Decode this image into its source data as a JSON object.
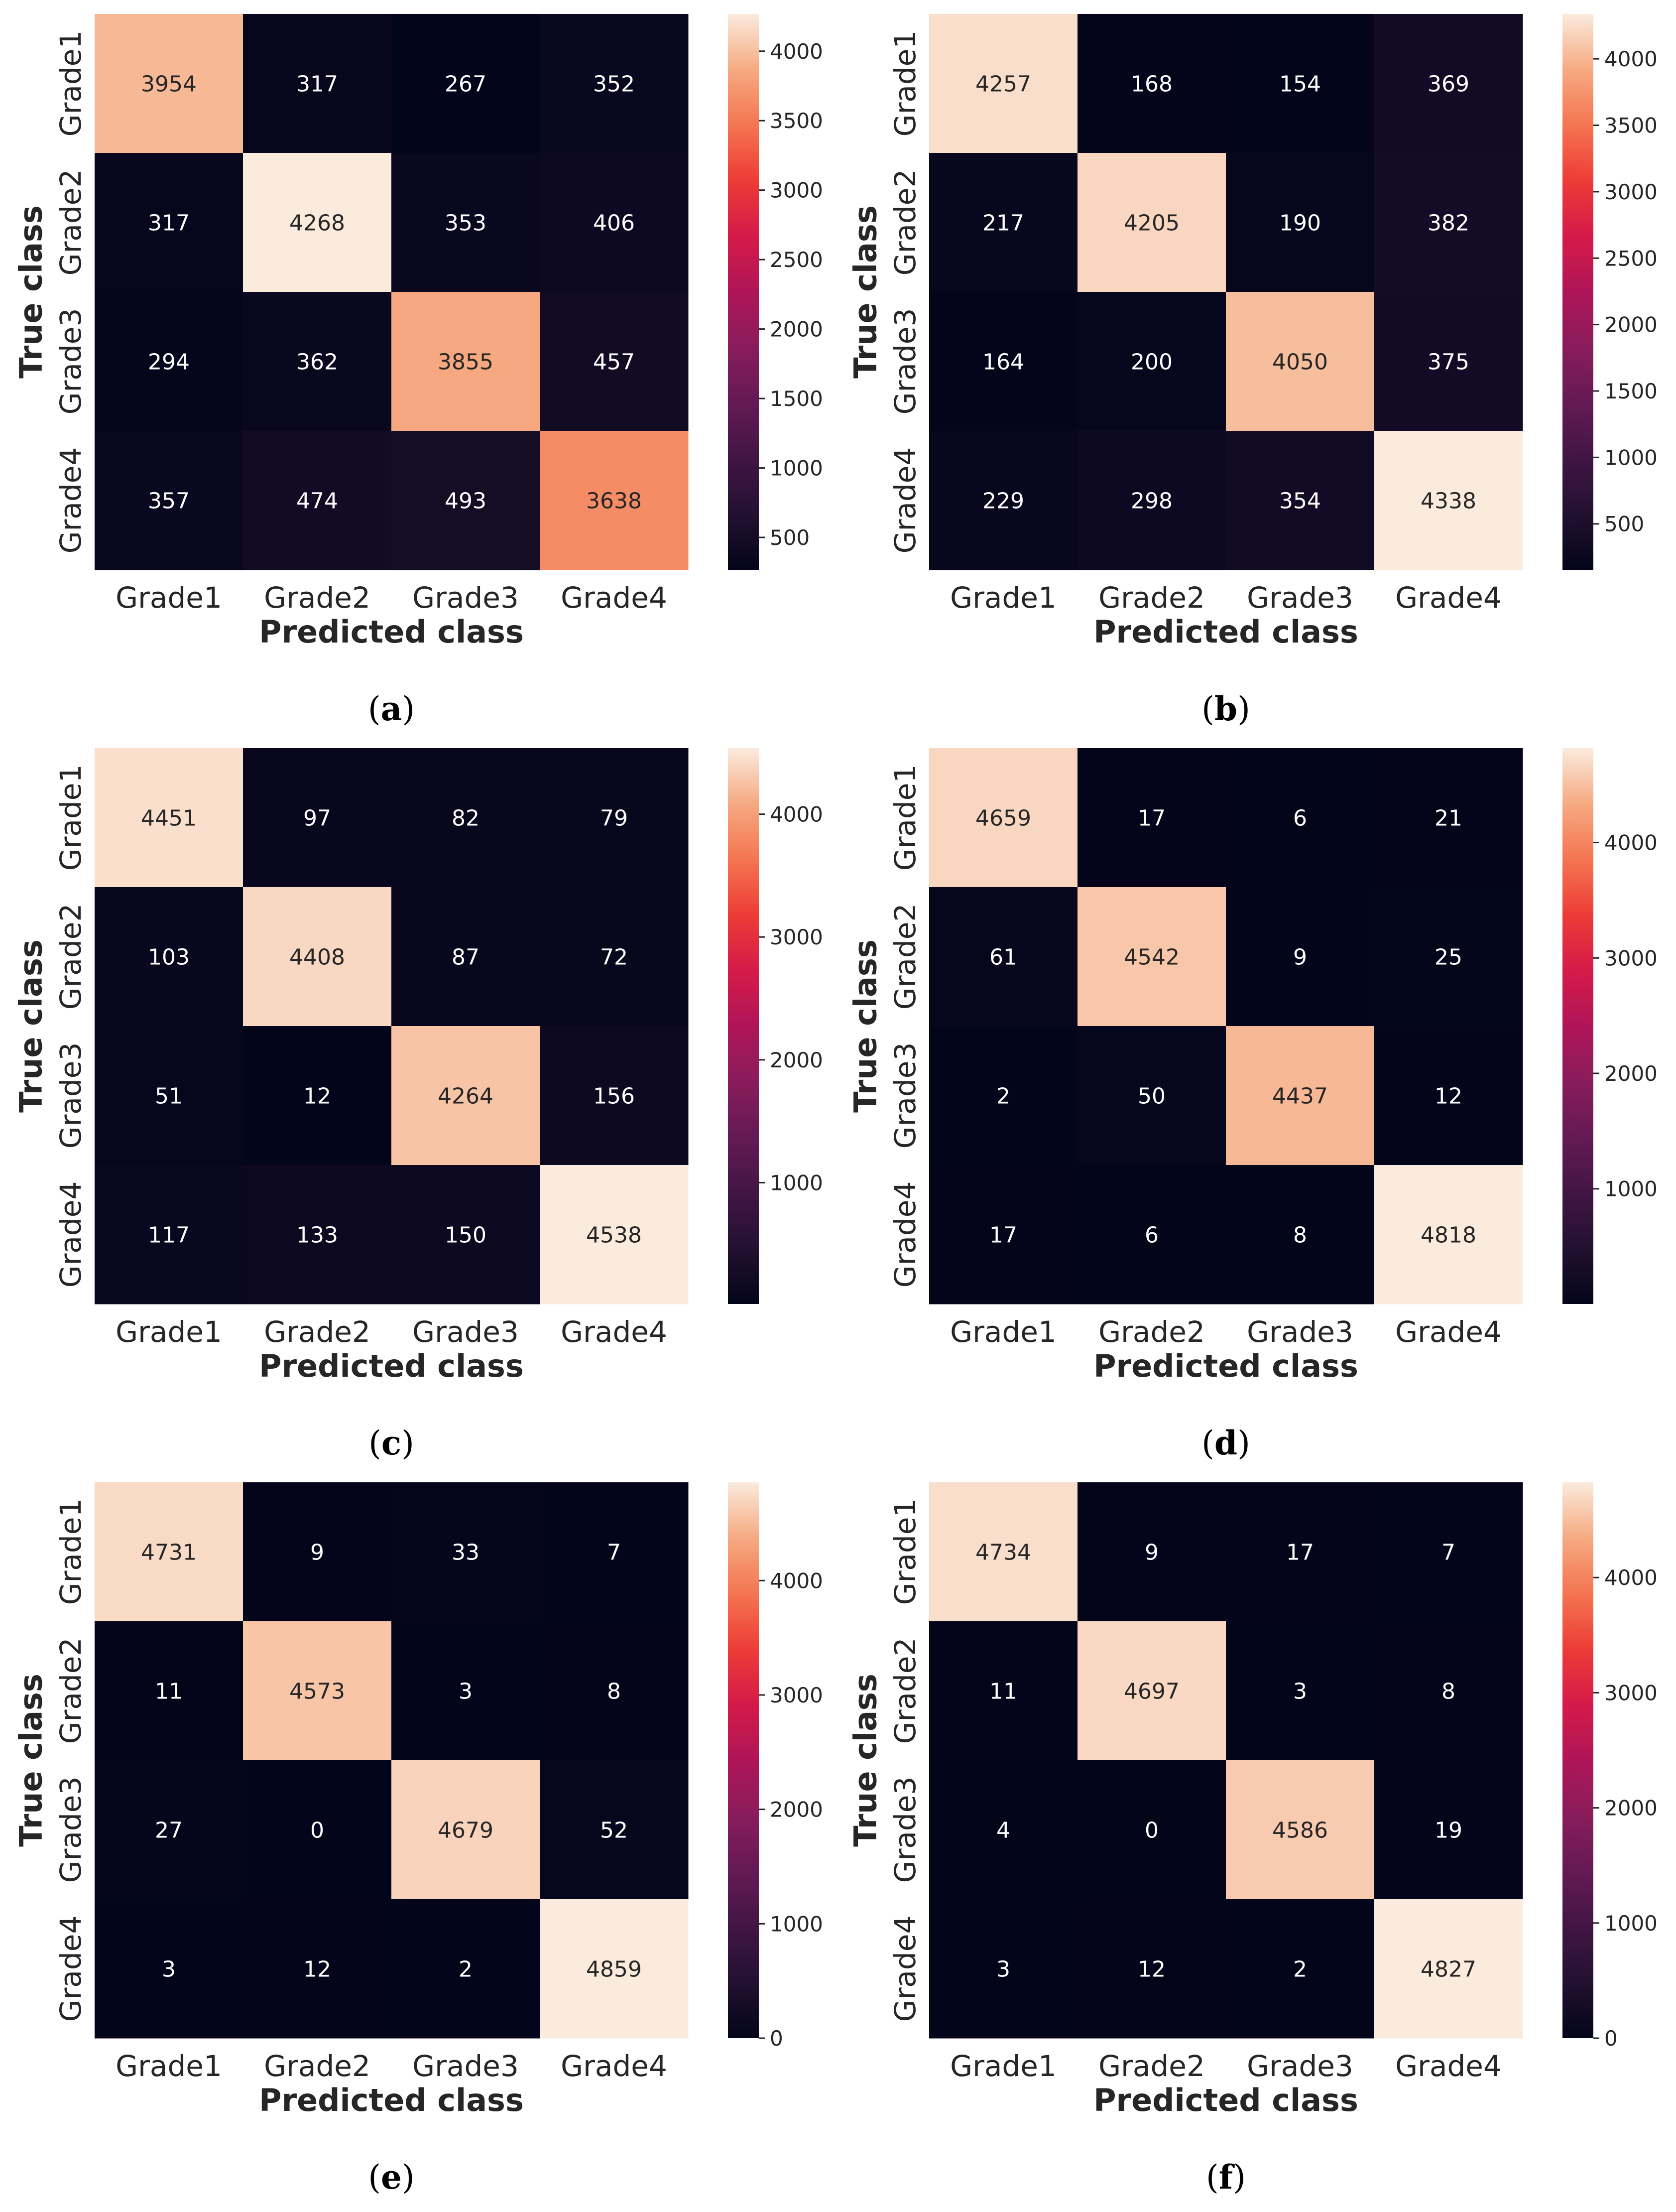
{
  "chart_data": [
    {
      "type": "heatmap",
      "caption_letter": "a",
      "xlabel": "Predicted class",
      "ylabel": "True class",
      "x_categories": [
        "Grade1",
        "Grade2",
        "Grade3",
        "Grade4"
      ],
      "y_categories": [
        "Grade1",
        "Grade2",
        "Grade3",
        "Grade4"
      ],
      "values": [
        [
          3954,
          317,
          267,
          352
        ],
        [
          317,
          4268,
          353,
          406
        ],
        [
          294,
          362,
          3855,
          457
        ],
        [
          357,
          474,
          493,
          3638
        ]
      ],
      "colorbar_range": [
        267,
        4268
      ],
      "colorbar_ticks": [
        500,
        1000,
        1500,
        2000,
        2500,
        3000,
        3500,
        4000
      ],
      "colormap": "rocket"
    },
    {
      "type": "heatmap",
      "caption_letter": "b",
      "xlabel": "Predicted class",
      "ylabel": "True class",
      "x_categories": [
        "Grade1",
        "Grade2",
        "Grade3",
        "Grade4"
      ],
      "y_categories": [
        "Grade1",
        "Grade2",
        "Grade3",
        "Grade4"
      ],
      "values": [
        [
          4257,
          168,
          154,
          369
        ],
        [
          217,
          4205,
          190,
          382
        ],
        [
          164,
          200,
          4050,
          375
        ],
        [
          229,
          298,
          354,
          4338
        ]
      ],
      "colorbar_range": [
        154,
        4338
      ],
      "colorbar_ticks": [
        500,
        1000,
        1500,
        2000,
        2500,
        3000,
        3500,
        4000
      ],
      "colormap": "rocket"
    },
    {
      "type": "heatmap",
      "caption_letter": "c",
      "xlabel": "Predicted class",
      "ylabel": "True class",
      "x_categories": [
        "Grade1",
        "Grade2",
        "Grade3",
        "Grade4"
      ],
      "y_categories": [
        "Grade1",
        "Grade2",
        "Grade3",
        "Grade4"
      ],
      "values": [
        [
          4451,
          97,
          82,
          79
        ],
        [
          103,
          4408,
          87,
          72
        ],
        [
          51,
          12,
          4264,
          156
        ],
        [
          117,
          133,
          150,
          4538
        ]
      ],
      "colorbar_range": [
        12,
        4538
      ],
      "colorbar_ticks": [
        1000,
        2000,
        3000,
        4000
      ],
      "colormap": "rocket"
    },
    {
      "type": "heatmap",
      "caption_letter": "d",
      "xlabel": "Predicted class",
      "ylabel": "True class",
      "x_categories": [
        "Grade1",
        "Grade2",
        "Grade3",
        "Grade4"
      ],
      "y_categories": [
        "Grade1",
        "Grade2",
        "Grade3",
        "Grade4"
      ],
      "values": [
        [
          4659,
          17,
          6,
          21
        ],
        [
          61,
          4542,
          9,
          25
        ],
        [
          2,
          50,
          4437,
          12
        ],
        [
          17,
          6,
          8,
          4818
        ]
      ],
      "colorbar_range": [
        2,
        4818
      ],
      "colorbar_ticks": [
        1000,
        2000,
        3000,
        4000
      ],
      "colormap": "rocket"
    },
    {
      "type": "heatmap",
      "caption_letter": "e",
      "xlabel": "Predicted class",
      "ylabel": "True class",
      "x_categories": [
        "Grade1",
        "Grade2",
        "Grade3",
        "Grade4"
      ],
      "y_categories": [
        "Grade1",
        "Grade2",
        "Grade3",
        "Grade4"
      ],
      "values": [
        [
          4731,
          9,
          33,
          7
        ],
        [
          11,
          4573,
          3,
          8
        ],
        [
          27,
          0,
          4679,
          52
        ],
        [
          3,
          12,
          2,
          4859
        ]
      ],
      "colorbar_range": [
        0,
        4859
      ],
      "colorbar_ticks": [
        0,
        1000,
        2000,
        3000,
        4000
      ],
      "colormap": "rocket"
    },
    {
      "type": "heatmap",
      "caption_letter": "f",
      "xlabel": "Predicted class",
      "ylabel": "True class",
      "x_categories": [
        "Grade1",
        "Grade2",
        "Grade3",
        "Grade4"
      ],
      "y_categories": [
        "Grade1",
        "Grade2",
        "Grade3",
        "Grade4"
      ],
      "values": [
        [
          4734,
          9,
          17,
          7
        ],
        [
          11,
          4697,
          3,
          8
        ],
        [
          4,
          0,
          4586,
          19
        ],
        [
          3,
          12,
          2,
          4827
        ]
      ],
      "colorbar_range": [
        0,
        4827
      ],
      "colorbar_ticks": [
        0,
        1000,
        2000,
        3000,
        4000
      ],
      "colormap": "rocket"
    }
  ]
}
